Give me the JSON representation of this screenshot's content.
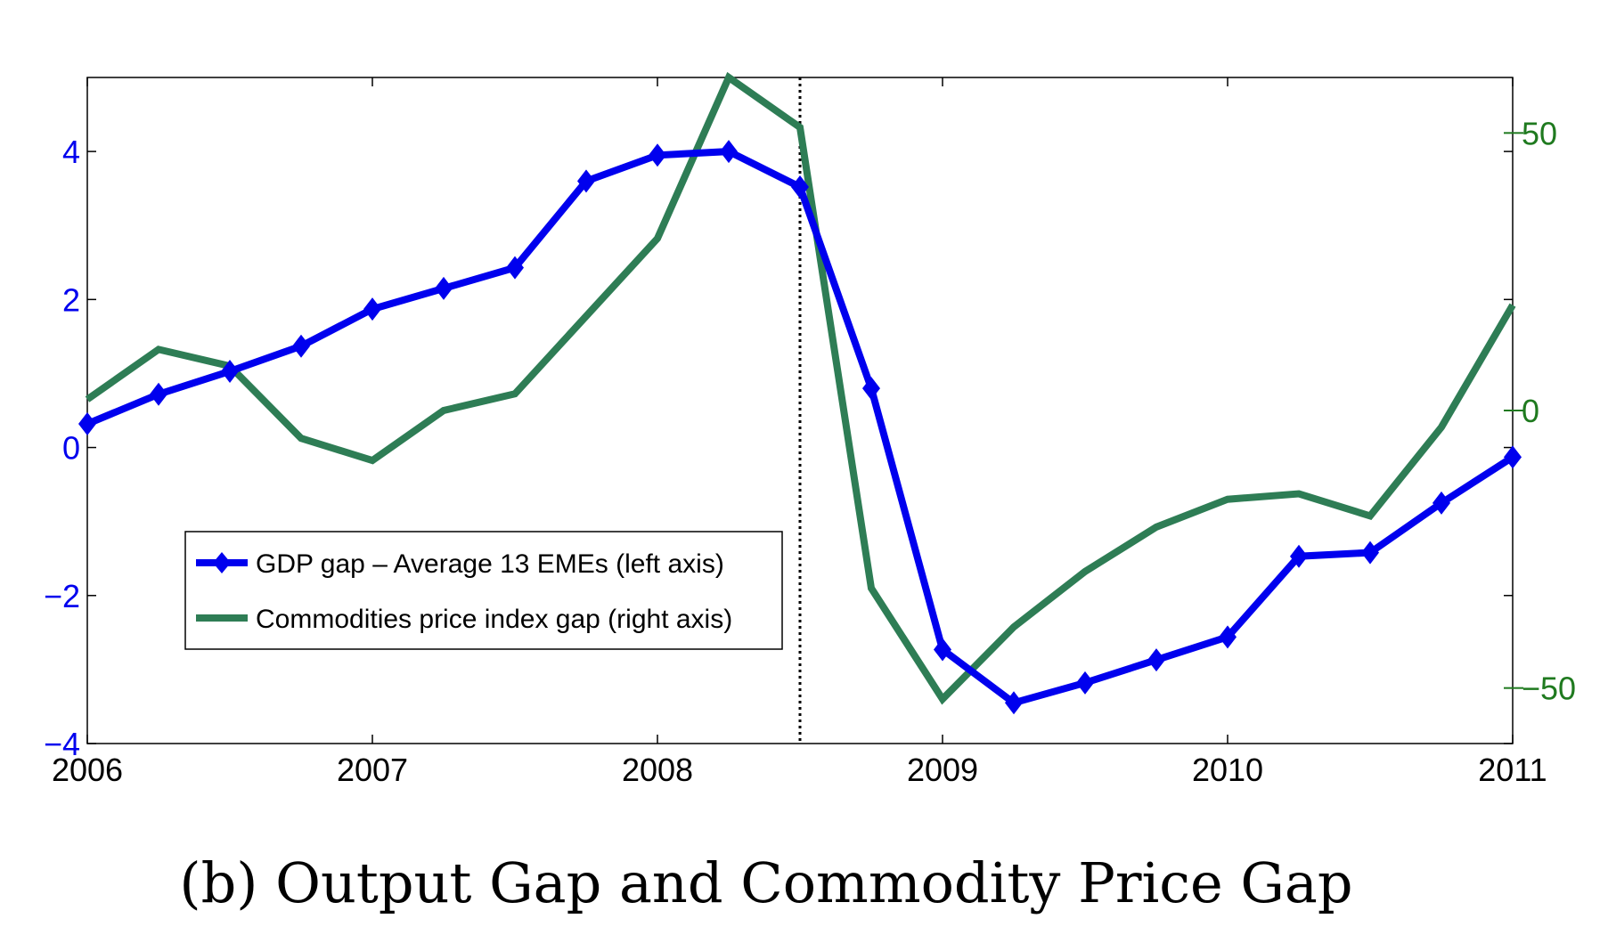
{
  "caption": "(b) Output Gap and Commodity Price Gap",
  "chart_data": {
    "type": "line",
    "x_range": [
      2006,
      2011
    ],
    "x_ticks": [
      2006,
      2007,
      2008,
      2009,
      2010,
      2011
    ],
    "left_axis": {
      "range": [
        -4,
        5
      ],
      "ticks": [
        -4,
        -2,
        0,
        2,
        4
      ],
      "color": "#0000ee"
    },
    "right_axis": {
      "range": [
        -60,
        60
      ],
      "ticks": [
        -50,
        0,
        50
      ],
      "color": "#1f7a1f"
    },
    "vertical_marker_x": 2008.5,
    "legend_location": "lower-left",
    "series": [
      {
        "name": "GDP gap – Average 13 EMEs (left axis)",
        "axis": "left",
        "color": "#0000ee",
        "marker": "diamond",
        "x": [
          2006.0,
          2006.25,
          2006.5,
          2006.75,
          2007.0,
          2007.25,
          2007.5,
          2007.75,
          2008.0,
          2008.25,
          2008.5,
          2008.75,
          2009.0,
          2009.25,
          2009.5,
          2009.75,
          2010.0,
          2010.25,
          2010.5,
          2010.75,
          2011.0
        ],
        "values": [
          0.32,
          0.72,
          1.03,
          1.37,
          1.87,
          2.15,
          2.43,
          3.6,
          3.95,
          4.0,
          3.52,
          0.8,
          -2.73,
          -3.45,
          -3.18,
          -2.87,
          -2.56,
          -1.47,
          -1.42,
          -0.75,
          -0.13
        ]
      },
      {
        "name": "Commodities price index gap (right axis)",
        "axis": "right",
        "color": "#2e7d55",
        "marker": "none",
        "x": [
          2006.0,
          2006.25,
          2006.5,
          2006.75,
          2007.0,
          2007.25,
          2007.5,
          2007.75,
          2008.0,
          2008.25,
          2008.5,
          2008.75,
          2009.0,
          2009.25,
          2009.5,
          2009.75,
          2010.0,
          2010.25,
          2010.5,
          2010.75,
          2011.0
        ],
        "values": [
          2,
          11,
          8,
          -5,
          -9,
          0,
          3,
          17,
          31,
          60,
          51,
          -32,
          -52,
          -39,
          -29,
          -21,
          -16,
          -15,
          -19,
          -3,
          19
        ]
      }
    ]
  }
}
